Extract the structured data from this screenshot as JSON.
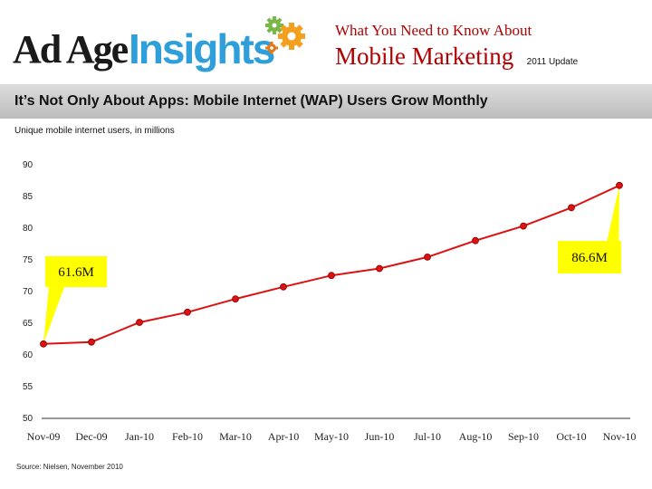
{
  "header": {
    "logo_part1": "Ad Age",
    "logo_part2": "Insights",
    "headline_line1": "What You Need to Know About",
    "headline_line2": "Mobile Marketing",
    "update_label": "2011 Update"
  },
  "slide_title": "It’s Not Only About Apps: Mobile Internet (WAP) Users Grow Monthly",
  "source": "Source: Nielsen, November 2010",
  "colors": {
    "line": "#dd1111",
    "callout": "#ffff00",
    "logo_blue": "#2e9fd9",
    "header_red": "#b00000"
  },
  "chart_data": {
    "type": "line",
    "title": "It’s Not Only About Apps: Mobile Internet (WAP) Users Grow Monthly",
    "ylabel": "Unique mobile internet users, in millions",
    "xlabel": "",
    "categories": [
      "Nov-09",
      "Dec-09",
      "Jan-10",
      "Feb-10",
      "Mar-10",
      "Apr-10",
      "May-10",
      "Jun-10",
      "Jul-10",
      "Aug-10",
      "Sep-10",
      "Oct-10",
      "Nov-10"
    ],
    "series": [
      {
        "name": "Unique mobile internet users (millions)",
        "values": [
          61.6,
          61.9,
          65.0,
          66.6,
          68.7,
          70.6,
          72.4,
          73.5,
          75.3,
          77.9,
          80.2,
          83.1,
          86.6
        ]
      }
    ],
    "ylim": [
      50,
      90
    ],
    "yticks": [
      90,
      85,
      80,
      75,
      70,
      65,
      60,
      55,
      50
    ],
    "grid": false,
    "annotations": [
      {
        "label": "61.6M",
        "point_index": 0
      },
      {
        "label": "86.6M",
        "point_index": 12
      }
    ]
  }
}
